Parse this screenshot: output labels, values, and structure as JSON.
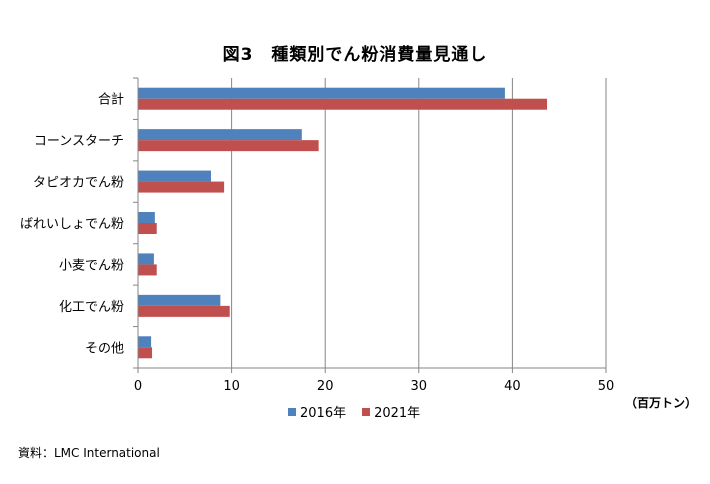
{
  "title": "図3　種類別でん粉消費量見通し",
  "unit": "（百万トン）",
  "source": "資料：LMC International",
  "colors": {
    "s2016": "#4F81BD",
    "s2021": "#C0504D",
    "grid": "#868686"
  },
  "chart_data": {
    "type": "bar",
    "orientation": "horizontal",
    "categories": [
      "合計",
      "コーンスターチ",
      "タピオカでん粉",
      "ばれいしょでん粉",
      "小麦でん粉",
      "化工でん粉",
      "その他"
    ],
    "series": [
      {
        "name": "2016年",
        "values": [
          39.2,
          17.5,
          7.8,
          1.8,
          1.7,
          8.8,
          1.4
        ]
      },
      {
        "name": "2021年",
        "values": [
          43.7,
          19.3,
          9.2,
          2.0,
          2.0,
          9.8,
          1.5
        ]
      }
    ],
    "xlim": [
      0,
      50
    ],
    "xticks": [
      0,
      10,
      20,
      30,
      40,
      50
    ],
    "grid": true,
    "legend": "bottom"
  }
}
